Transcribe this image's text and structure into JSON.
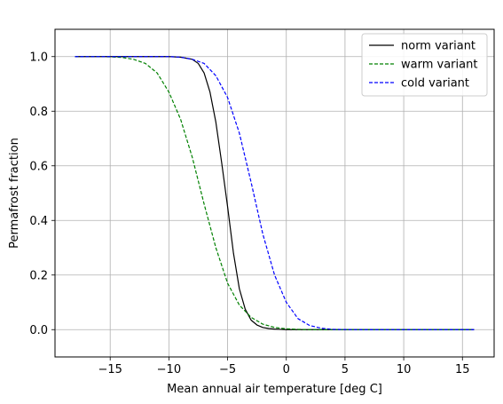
{
  "chart_data": {
    "type": "line",
    "title": "",
    "xlabel": "Mean annual air temperature [deg C]",
    "ylabel": "Permafrost fraction",
    "xlim": [
      -19.7,
      17.7
    ],
    "ylim": [
      -0.1,
      1.1
    ],
    "xticks": [
      -15,
      -10,
      -5,
      0,
      5,
      10,
      15
    ],
    "xtick_labels": [
      "−15",
      "−10",
      "−5",
      "0",
      "5",
      "10",
      "15"
    ],
    "yticks": [
      0.0,
      0.2,
      0.4,
      0.6,
      0.8,
      1.0
    ],
    "ytick_labels": [
      "0.0",
      "0.2",
      "0.4",
      "0.6",
      "0.8",
      "1.0"
    ],
    "grid": true,
    "legend_position": "top-right",
    "series": [
      {
        "name": "norm variant",
        "color": "#000000",
        "style": "solid",
        "x": [
          -18,
          -16,
          -14,
          -12,
          -10,
          -9,
          -8,
          -7.5,
          -7,
          -6.5,
          -6,
          -5.5,
          -5,
          -4.5,
          -4,
          -3.5,
          -3,
          -2.5,
          -2,
          -1.5,
          -1,
          -0.5,
          0,
          1,
          2,
          4,
          8,
          16
        ],
        "y": [
          1.0,
          1.0,
          1.0,
          1.0,
          1.0,
          0.998,
          0.99,
          0.975,
          0.94,
          0.87,
          0.76,
          0.61,
          0.45,
          0.28,
          0.15,
          0.075,
          0.035,
          0.017,
          0.008,
          0.004,
          0.002,
          0.001,
          0.0,
          0.0,
          0.0,
          0.0,
          0.0,
          0.0
        ]
      },
      {
        "name": "warm variant",
        "color": "#008000",
        "style": "dashed",
        "x": [
          -18,
          -16,
          -15,
          -14,
          -13,
          -12,
          -11,
          -10,
          -9,
          -8,
          -7,
          -6,
          -5,
          -4,
          -3,
          -2,
          -1,
          0,
          1,
          2,
          4,
          8,
          16
        ],
        "y": [
          1.0,
          1.0,
          0.999,
          0.997,
          0.99,
          0.975,
          0.94,
          0.87,
          0.77,
          0.63,
          0.46,
          0.3,
          0.17,
          0.09,
          0.045,
          0.02,
          0.008,
          0.003,
          0.001,
          0.0,
          0.0,
          0.0,
          0.0
        ]
      },
      {
        "name": "cold variant",
        "color": "#0000ff",
        "style": "dashed",
        "x": [
          -18,
          -16,
          -14,
          -12,
          -10,
          -9,
          -8,
          -7,
          -6,
          -5,
          -4,
          -3,
          -2,
          -1,
          0,
          1,
          2,
          3,
          4,
          6,
          10,
          16
        ],
        "y": [
          1.0,
          1.0,
          1.0,
          1.0,
          1.0,
          0.998,
          0.99,
          0.975,
          0.93,
          0.85,
          0.72,
          0.54,
          0.35,
          0.2,
          0.1,
          0.04,
          0.015,
          0.005,
          0.001,
          0.0,
          0.0,
          0.0
        ]
      }
    ]
  }
}
